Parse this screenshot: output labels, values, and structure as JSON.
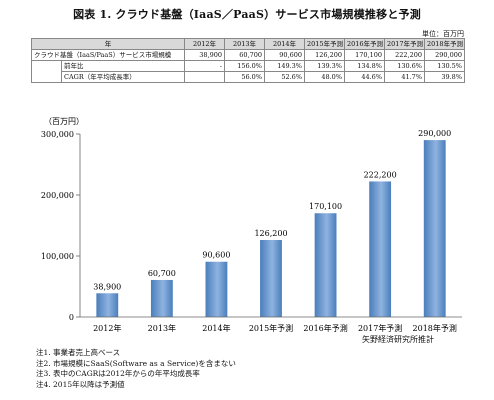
{
  "title": "図表 1. クラウド基盤（IaaS／PaaS）サービス市場規模推移と予測",
  "unit_label": "単位：百万円",
  "table": {
    "headers": [
      "年",
      "2012年",
      "2013年",
      "2014年",
      "2015年予測",
      "2016年予測",
      "2017年予測",
      "2018年予測"
    ],
    "rows": [
      {
        "label": "クラウド基盤（IaaS/PaaS）サービス市場規模",
        "values": [
          "38,900",
          "60,700",
          "90,600",
          "126,200",
          "170,100",
          "222,200",
          "290,000"
        ]
      },
      {
        "label": "前年比",
        "values": [
          "-",
          "156.0%",
          "149.3%",
          "139.3%",
          "134.8%",
          "130.6%",
          "130.5%"
        ]
      },
      {
        "label": "CAGR（年平均成長率）",
        "values": [
          "",
          "56.0%",
          "52.6%",
          "48.0%",
          "44.6%",
          "41.7%",
          "39.8%"
        ]
      }
    ]
  },
  "chart_data": {
    "type": "bar",
    "ylabel": "（百万円）",
    "categories": [
      "2012年",
      "2013年",
      "2014年",
      "2015年予測",
      "2016年予測",
      "2017年予測",
      "2018年予測"
    ],
    "values": [
      38900,
      60700,
      90600,
      126200,
      170100,
      222200,
      290000
    ],
    "data_labels": [
      "38,900",
      "60,700",
      "90,600",
      "126,200",
      "170,100",
      "222,200",
      "290,000"
    ],
    "ylim": [
      0,
      300000
    ],
    "yticks": [
      0,
      100000,
      200000,
      300000
    ],
    "ytick_labels": [
      "0",
      "100,000",
      "200,000",
      "300,000"
    ],
    "grid": false,
    "bar_color": "#4a7ebb",
    "bar_color_light": "#8fb3e0"
  },
  "source": "矢野経済研究所推計",
  "notes": [
    "注1. 事業者売上高ベース",
    "注2. 市場規模にSaaS(Software as a Service)を含まない",
    "注3. 表中のCAGRは2012年からの年平均成長率",
    "注4. 2015年以降は予測値"
  ]
}
